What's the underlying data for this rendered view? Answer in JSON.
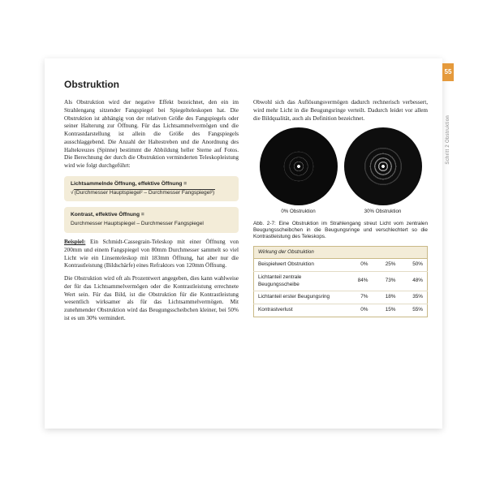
{
  "page": {
    "number": "55",
    "side_label": "Schritt 2   Obstruktion",
    "title": "Obstruktion"
  },
  "left": {
    "p1": "Als Obstruktion wird der negative Effekt bezeichnet, den ein im Strahlengang sitzender Fangspiegel bei Spiegelteleskopen hat. Die Obstruktion ist abhängig von der relativen Größe des Fangspiegels oder seiner Halterung zur Öffnung. Für das Lichtsammelvermögen und die Kontrastdarstellung ist allein die Größe des Fangspiegels ausschlaggebend. Die Anzahl der Haltestreben und die Anordnung des Haltekreuzes (Spinne) bestimmt die Abbildung heller Sterne auf Fotos. Die Berechnung der durch die Obstruktion verminderten Teleskopleistung wird wie folgt durchgeführt:",
    "formula1_title": "Lichtsammelnde Öffnung, effektive Öffnung =",
    "formula1_body_pre": "√",
    "formula1_body": "(Durchmesser Hauptspiegel² – Durchmesser Fangspiegel²)",
    "formula2_title": "Kontrast, effektive Öffnung =",
    "formula2_body": "Durchmesser Hauptspiegel – Durchmesser Fangspiegel",
    "beispiel_label": "Beispiel:",
    "beispiel": "Ein Schmidt-Cassegrain-Teleskop mit einer Öffnung von 200mm und einem Fangspiegel von 80mm Durchmesser sammelt so viel Licht wie ein Linsenteleskop mit 183mm Öffnung, hat aber nur die Kontrastleistung (Bildschärfe) eines Refraktors von 120mm Öffnung.",
    "p2": "Die Obstruktion wird oft als Prozentwert angegeben, dies kann wahlweise der für das Lichtsammelvermögen oder die Kontrastleistung errechnete Wert sein. Für das Bild, ist die Obstruktion für die Kontrastleistung wesentlich wirksamer als für das Lichtsammelvermögen. Mit zunehmender Obstruktion wird das Beugungsscheibchen kleiner, bei 50% ist es um 30% vermindert."
  },
  "right": {
    "p1": "Obwohl sich das Auflösungsvermögen dadurch rechnerisch verbessert, wird mehr Licht in die Beugungsringe verteilt. Dadurch leidet vor allem die Bildqualität, auch als Definition bezeichnet.",
    "disc_label_0": "0% Obstruktion",
    "disc_label_30": "30% Obstruktion",
    "fig_caption": "Abb. 2-7: Eine Obstruktion im Strahlengang streut Licht vom zentralen Beugungsscheibchen in die Beugungsringe und verschlechtert so die Kontrastleistung des Teleskops."
  },
  "table": {
    "title": "Wirkung der Obstruktion",
    "rows": [
      {
        "label": "Beispielwert Obstruktion",
        "c1": "0%",
        "c2": "25%",
        "c3": "50%"
      },
      {
        "label": "Lichtanteil zentrale Beugungsscheibe",
        "c1": "84%",
        "c2": "73%",
        "c3": "48%"
      },
      {
        "label": "Lichtanteil erster Beugungsring",
        "c1": "7%",
        "c2": "18%",
        "c3": "35%"
      },
      {
        "label": "Kontrastverlust",
        "c1": "0%",
        "c2": "15%",
        "c3": "55%"
      }
    ]
  }
}
